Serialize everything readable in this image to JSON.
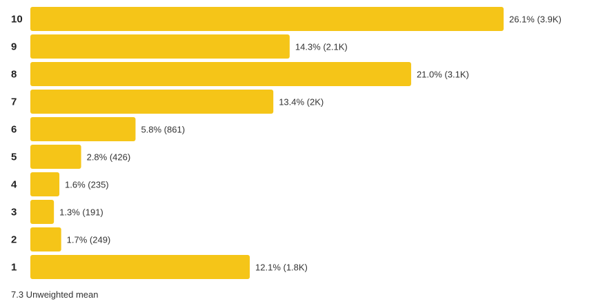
{
  "chart_data": {
    "type": "bar",
    "orientation": "horizontal",
    "categories": [
      "10",
      "9",
      "8",
      "7",
      "6",
      "5",
      "4",
      "3",
      "2",
      "1"
    ],
    "values": [
      26.1,
      14.3,
      21.0,
      13.4,
      5.8,
      2.8,
      1.6,
      1.3,
      1.7,
      12.1
    ],
    "data_labels": [
      "26.1% (3.9K)",
      "14.3% (2.1K)",
      "21.0% (3.1K)",
      "13.4% (2K)",
      "5.8% (861)",
      "2.8% (426)",
      "1.6% (235)",
      "1.3% (191)",
      "1.7% (249)",
      "12.1% (1.8K)"
    ],
    "bar_color": "#f5c518",
    "grid": false
  },
  "footer": {
    "mean_text": "7.3 Unweighted mean"
  }
}
